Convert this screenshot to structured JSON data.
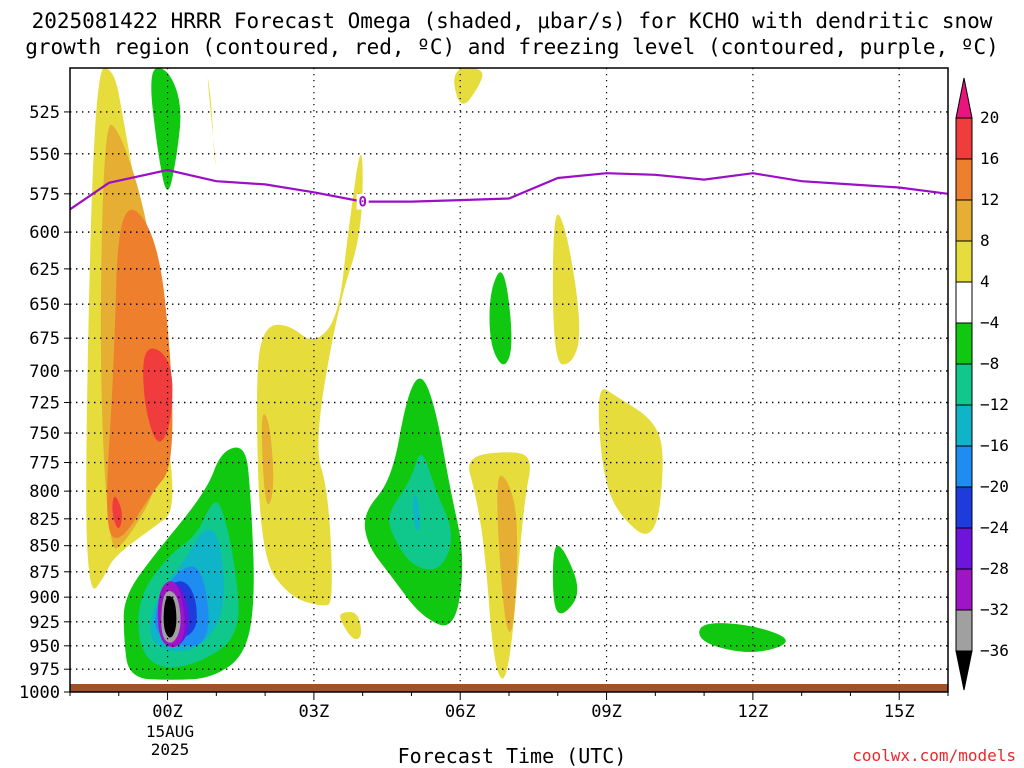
{
  "title_line1": "2025081422 HRRR Forecast Omega (shaded, μbar/s) for KCHO with dendritic snow",
  "title_line2": "growth region (contoured, red, ºC) and freezing level (contoured, purple, ºC)",
  "xlabel": "Forecast Time (UTC)",
  "date_label_line1": "15AUG",
  "date_label_line2": "2025",
  "credit": "coolwx.com/models",
  "colors": {
    "freezing_level": "#9b0fc8",
    "ground": "#a0522d",
    "grid": "#000000"
  },
  "chart_data": {
    "type": "heatmap",
    "title": "2025081422 HRRR Forecast Omega (shaded, μbar/s) for KCHO",
    "xlabel": "Forecast Time (UTC)",
    "ylabel": "",
    "xlim": [
      -2,
      16
    ],
    "ylim": [
      1000,
      500
    ],
    "y_scale": "log-pressure",
    "x_ticks": [
      {
        "x": 0,
        "label": "00Z"
      },
      {
        "x": 3,
        "label": "03Z"
      },
      {
        "x": 6,
        "label": "06Z"
      },
      {
        "x": 9,
        "label": "09Z"
      },
      {
        "x": 12,
        "label": "12Z"
      },
      {
        "x": 15,
        "label": "15Z"
      }
    ],
    "y_ticks": [
      525,
      550,
      575,
      600,
      625,
      650,
      675,
      700,
      725,
      750,
      775,
      800,
      825,
      850,
      875,
      900,
      925,
      950,
      975,
      1000
    ],
    "grid": true,
    "colorbar": {
      "labels": [
        "20",
        "16",
        "12",
        "8",
        "4",
        "−4",
        "−8",
        "−12",
        "−16",
        "−20",
        "−24",
        "−28",
        "−32",
        "−36"
      ],
      "colors": [
        "#e8157e",
        "#f03c3c",
        "#ee7f2d",
        "#e6ae33",
        "#e6dc3c",
        "#ffffff",
        "#10c810",
        "#10c88c",
        "#10b4c8",
        "#1e8cf0",
        "#1e3cdc",
        "#6e14dc",
        "#a014c8",
        "#a0a0a0",
        "#000000"
      ]
    },
    "freezing_level": {
      "label": "0",
      "x": [
        -2,
        -1.2,
        0,
        1,
        2,
        3,
        4,
        5,
        6,
        7,
        8,
        9,
        10,
        11,
        12,
        13,
        14,
        15,
        16
      ],
      "p": [
        585,
        568,
        560,
        567,
        569,
        574,
        580,
        580,
        579,
        578,
        565,
        562,
        563,
        566,
        562,
        567,
        569,
        571,
        575
      ]
    },
    "regions": [
      {
        "value": 4,
        "x": [
          -1.5,
          -1.1,
          -0.9,
          -0.5,
          -0.4,
          -0.2,
          0.1,
          0.1,
          -0.2,
          -1.1,
          -1.3,
          -1.6,
          -1.7
        ],
        "p": [
          500,
          500,
          530,
          600,
          650,
          700,
          780,
          820,
          830,
          860,
          880,
          900,
          800
        ]
      },
      {
        "value": 8,
        "x": [
          -1.3,
          -1.0,
          -0.5,
          -0.2,
          0,
          -0.1,
          -0.9,
          -1.2,
          -1.4
        ],
        "p": [
          530,
          535,
          580,
          640,
          700,
          790,
          850,
          855,
          700
        ]
      },
      {
        "value": 12,
        "x": [
          -1.0,
          -0.2,
          0.1,
          0.1,
          -0.3,
          -1.0,
          -1.3,
          -1.1
        ],
        "p": [
          575,
          600,
          700,
          780,
          800,
          850,
          830,
          700
        ]
      },
      {
        "value": 16,
        "x": [
          -0.5,
          0.1,
          0.1,
          -0.2,
          -0.5
        ],
        "p": [
          678,
          690,
          740,
          765,
          725
        ]
      },
      {
        "value": 16,
        "x": [
          -1.1,
          -0.9,
          -1.0,
          -1.15
        ],
        "p": [
          800,
          820,
          838,
          820
        ]
      },
      {
        "value": 4,
        "x": [
          0.8,
          0.9,
          1.0,
          0.95,
          0.9
        ],
        "p": [
          500,
          530,
          560,
          550,
          520
        ]
      },
      {
        "value": 4,
        "x": [
          1.8,
          2.0,
          2.5,
          3.0,
          3.5,
          3.7,
          4.0,
          4.0,
          3.5,
          3.0,
          3.3,
          3.4,
          3.2,
          2.5,
          1.9
        ],
        "p": [
          700,
          665,
          665,
          680,
          660,
          600,
          535,
          600,
          650,
          760,
          800,
          905,
          910,
          900,
          860
        ]
      },
      {
        "value": 8,
        "x": [
          1.9,
          2.1,
          2.2,
          2.0
        ],
        "p": [
          730,
          740,
          800,
          820
        ]
      },
      {
        "value": 4,
        "x": [
          3.6,
          3.9,
          4.0,
          3.8,
          3.5
        ],
        "p": [
          915,
          915,
          940,
          945,
          920
        ]
      },
      {
        "value": 4,
        "x": [
          5.8,
          6.5,
          6.4,
          6.0
        ],
        "p": [
          500,
          500,
          510,
          525
        ]
      },
      {
        "value": 4,
        "x": [
          6.1,
          7.0,
          7.5,
          7.3,
          7.0,
          6.7,
          6.5,
          6.3
        ],
        "p": [
          770,
          765,
          770,
          810,
          990,
          980,
          850,
          800
        ]
      },
      {
        "value": 8,
        "x": [
          6.7,
          7.0,
          7.2,
          7.1,
          6.9
        ],
        "p": [
          783,
          790,
          830,
          940,
          930
        ]
      },
      {
        "value": 4,
        "x": [
          7.9,
          8.2,
          8.5,
          8.3,
          7.9
        ],
        "p": [
          580,
          600,
          670,
          695,
          695
        ]
      },
      {
        "value": 4,
        "x": [
          8.8,
          9.2,
          10.0,
          10.2,
          10.0,
          9.2,
          8.9
        ],
        "p": [
          710,
          720,
          740,
          770,
          850,
          820,
          780
        ]
      },
      {
        "value": -4,
        "x": [
          -0.4,
          0,
          0.3,
          0.2,
          0,
          -0.2
        ],
        "p": [
          500,
          500,
          520,
          550,
          580,
          550
        ]
      },
      {
        "value": -4,
        "x": [
          -0.9,
          -0.3,
          0.8,
          1.1,
          1.6,
          1.7,
          1.8,
          1.6,
          0.9,
          0.1,
          -0.8,
          -0.9
        ],
        "p": [
          900,
          860,
          800,
          765,
          760,
          800,
          900,
          960,
          985,
          987,
          985,
          940
        ]
      },
      {
        "value": -8,
        "x": [
          -0.6,
          0,
          0.6,
          0.9,
          1.1,
          1.4,
          1.5,
          0.6,
          -0.2,
          -0.6
        ],
        "p": [
          900,
          860,
          840,
          810,
          810,
          870,
          940,
          970,
          975,
          950
        ]
      },
      {
        "value": -12,
        "x": [
          -0.3,
          0.4,
          0.8,
          1.1,
          1.2,
          0.5,
          -0.4
        ],
        "p": [
          905,
          860,
          830,
          845,
          920,
          960,
          950
        ]
      },
      {
        "value": -16,
        "x": [
          -0.2,
          0.3,
          0.7,
          0.9,
          0.6,
          -0.3
        ],
        "p": [
          900,
          870,
          870,
          930,
          955,
          940
        ]
      },
      {
        "value": -20,
        "x": [
          -0.15,
          0.3,
          0.6,
          0.6,
          -0.2
        ],
        "p": [
          895,
          880,
          900,
          940,
          945
        ]
      },
      {
        "value": -24,
        "x": [
          -0.1,
          0.3,
          0.5,
          0.2,
          -0.2
        ],
        "p": [
          890,
          885,
          930,
          955,
          940
        ]
      },
      {
        "value": -28,
        "x": [
          -0.2,
          0.2,
          0.4,
          0.2,
          -0.2
        ],
        "p": [
          890,
          880,
          930,
          955,
          945
        ]
      },
      {
        "value": -32,
        "x": [
          -0.1,
          0.2,
          0.3,
          0.1,
          -0.15
        ],
        "p": [
          893,
          895,
          930,
          950,
          940
        ]
      },
      {
        "value": -36,
        "x": [
          -0.05,
          0.15,
          0.2,
          0.05,
          -0.1
        ],
        "p": [
          898,
          900,
          930,
          945,
          930
        ]
      },
      {
        "value": -4,
        "x": [
          4.0,
          4.6,
          4.9,
          5.2,
          5.5,
          5.8,
          6.1,
          5.9,
          5.2,
          4.6,
          4.1
        ],
        "p": [
          820,
          790,
          720,
          700,
          730,
          800,
          860,
          935,
          920,
          880,
          850
        ]
      },
      {
        "value": -8,
        "x": [
          4.5,
          5.0,
          5.2,
          5.5,
          5.9,
          5.6,
          5.0,
          4.6
        ],
        "p": [
          820,
          790,
          760,
          800,
          840,
          875,
          870,
          840
        ]
      },
      {
        "value": -12,
        "x": [
          5.0,
          5.1,
          5.2,
          5.1
        ],
        "p": [
          810,
          800,
          830,
          840
        ]
      },
      {
        "value": -4,
        "x": [
          6.6,
          6.9,
          7.1,
          6.9,
          6.6
        ],
        "p": [
          640,
          620,
          680,
          700,
          680
        ]
      },
      {
        "value": -4,
        "x": [
          7.9,
          8.1,
          8.5,
          8.1,
          7.9
        ],
        "p": [
          850,
          850,
          895,
          920,
          910
        ]
      },
      {
        "value": -4,
        "x": [
          10.9,
          12.0,
          12.9,
          12.0,
          10.9
        ],
        "p": [
          925,
          928,
          945,
          960,
          947
        ]
      }
    ]
  }
}
